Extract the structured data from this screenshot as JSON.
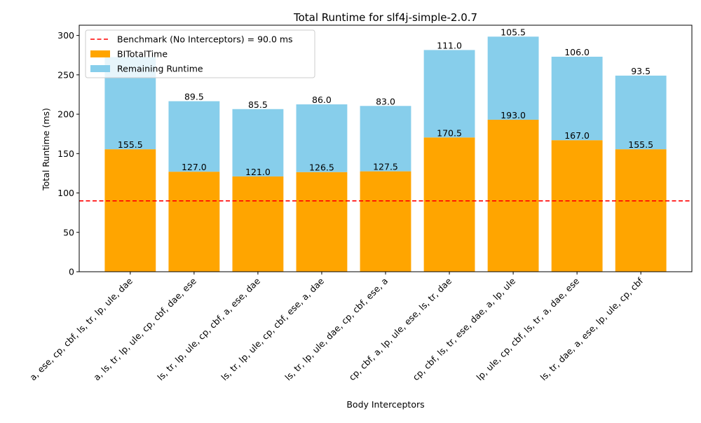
{
  "chart_data": {
    "type": "bar",
    "stacked": true,
    "title": "Total Runtime for slf4j-simple-2.0.7",
    "xlabel": "Body Interceptors",
    "ylabel": "Total Runtime (ms)",
    "ylim": [
      0,
      313
    ],
    "yticks": [
      0,
      50,
      100,
      150,
      200,
      250,
      300
    ],
    "categories": [
      "a, ese, cp, cbf, ls, tr, lp, ule, dae",
      "a, ls, tr, lp, ule, cp, cbf, dae, ese",
      "ls, tr, lp, ule, cp, cbf, a, ese, dae",
      "ls, tr, lp, ule, cp, cbf, ese, a, dae",
      "ls, tr, lp, ule, dae, cp, cbf, ese, a",
      "cp, cbf, a, lp, ule, ese, ls, tr, dae",
      "cp, cbf, ls, tr, ese, dae, a, lp, ule",
      "lp, ule, cp, cbf, ls, tr, a, dae, ese",
      "ls, tr, dae, a, ese, lp, ule, cp, cbf"
    ],
    "series": [
      {
        "name": "BITotalTime",
        "color": "#ffa500",
        "values": [
          155.5,
          127.0,
          121.0,
          126.5,
          127.5,
          170.5,
          193.0,
          167.0,
          155.5
        ],
        "labels": [
          "155.5",
          "127.0",
          "121.0",
          "126.5",
          "127.5",
          "170.5",
          "193.0",
          "167.0",
          "155.5"
        ]
      },
      {
        "name": "Remaining Runtime",
        "color": "#87ceeb",
        "values": [
          117.0,
          89.5,
          85.5,
          86.0,
          83.0,
          111.0,
          105.5,
          106.0,
          93.5
        ],
        "labels": [
          "",
          "89.5",
          "85.5",
          "86.0",
          "83.0",
          "111.0",
          "105.5",
          "106.0",
          "93.5"
        ]
      }
    ],
    "reference_line": {
      "value": 90.0,
      "label": "Benchmark (No Interceptors) = 90.0 ms",
      "color": "#ff0000",
      "style": "dashed"
    },
    "legend": {
      "placement": "top-left",
      "entries": [
        "Benchmark (No Interceptors) = 90.0 ms",
        "BITotalTime",
        "Remaining Runtime"
      ]
    },
    "grid": false
  }
}
